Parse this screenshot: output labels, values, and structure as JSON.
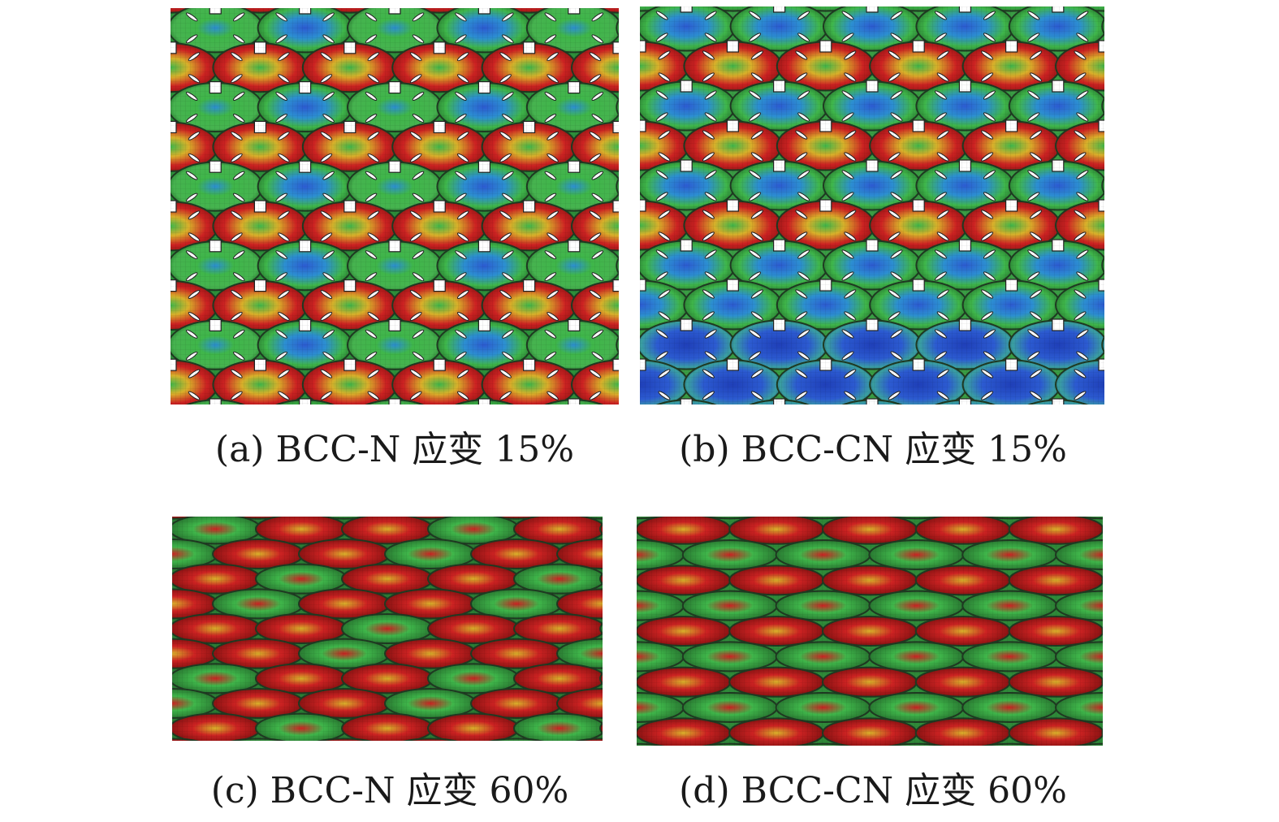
{
  "figure": {
    "panels": [
      {
        "id": "a",
        "caption": "(a) BCC-N 应变 15%",
        "material": "BCC-N",
        "strain_percent": 15,
        "palette": "red-green"
      },
      {
        "id": "b",
        "caption": "(b) BCC-CN 应变 15%",
        "material": "BCC-CN",
        "strain_percent": 15,
        "palette": "green-blue"
      },
      {
        "id": "c",
        "caption": "(c) BCC-N 应变 60%",
        "material": "BCC-N",
        "strain_percent": 60,
        "palette": "red-compressed"
      },
      {
        "id": "d",
        "caption": "(d) BCC-CN 应变 60%",
        "material": "BCC-CN",
        "strain_percent": 60,
        "palette": "red-compressed"
      }
    ],
    "colors": {
      "high_stress": "#cc2222",
      "mid_stress": "#3fb64a",
      "low_stress": "#2c5bd1",
      "transition": "#d8b02a",
      "mesh_edge": "#1f4a25"
    }
  }
}
